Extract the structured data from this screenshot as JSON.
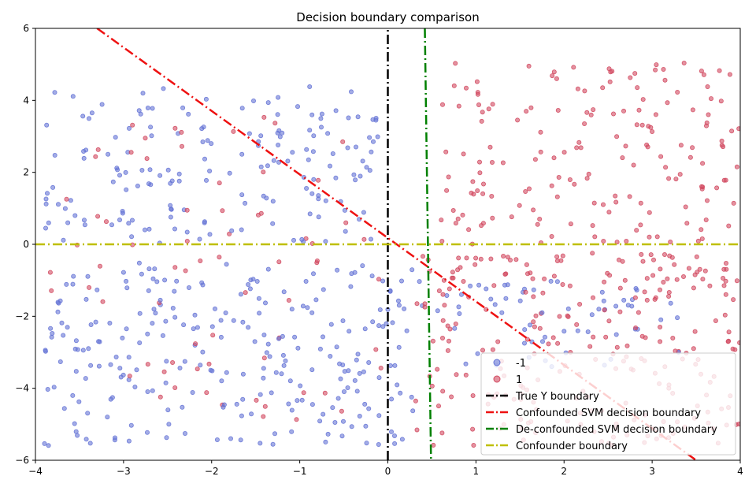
{
  "chart_data": {
    "type": "scatter",
    "title": "Decision boundary comparison",
    "xlabel": "",
    "ylabel": "",
    "xlim": [
      -4,
      4
    ],
    "ylim": [
      -6,
      6
    ],
    "x_ticks": [
      -4,
      -3,
      -2,
      -1,
      0,
      1,
      2,
      3,
      4
    ],
    "y_ticks": [
      -6,
      -4,
      -2,
      0,
      2,
      4,
      6
    ],
    "x_tick_labels": [
      "−4",
      "−3",
      "−2",
      "−1",
      "0",
      "1",
      "2",
      "3",
      "4"
    ],
    "y_tick_labels": [
      "−6",
      "−4",
      "−2",
      "0",
      "2",
      "4",
      "6"
    ],
    "grid": false,
    "legend_position": "lower-right",
    "colors": {
      "class_neg": "#6674d6",
      "class_pos": "#d24a60",
      "true_boundary": "#000000",
      "confounded": "#ee1111",
      "deconfounded": "#008000",
      "confounder": "#bfbf00"
    },
    "series": [
      {
        "name": "-1",
        "kind": "points",
        "clusters": [
          {
            "x_range": [
              -3.9,
              -0.1
            ],
            "y_range": [
              0.0,
              4.4
            ],
            "count": 170
          },
          {
            "x_range": [
              -3.9,
              0.4
            ],
            "y_range": [
              -5.6,
              -0.5
            ],
            "count": 260
          },
          {
            "x_range": [
              0.5,
              3.3
            ],
            "y_range": [
              -3.4,
              -1.0
            ],
            "count": 60
          }
        ]
      },
      {
        "name": "1",
        "kind": "points",
        "clusters": [
          {
            "x_range": [
              0.6,
              4.0
            ],
            "y_range": [
              0.0,
              5.1
            ],
            "count": 170
          },
          {
            "x_range": [
              0.3,
              4.0
            ],
            "y_range": [
              -5.6,
              -0.2
            ],
            "count": 260
          },
          {
            "x_range": [
              -3.9,
              0.0
            ],
            "y_range": [
              -4.9,
              3.6
            ],
            "count": 70
          }
        ]
      },
      {
        "name": "True Y boundary",
        "kind": "line",
        "style": "dash-dot",
        "points": [
          [
            0,
            -6
          ],
          [
            0,
            6
          ]
        ]
      },
      {
        "name": "Confounded SVM decision boundary",
        "kind": "line",
        "style": "dash-dot",
        "points": [
          [
            -3.3,
            6.0
          ],
          [
            3.5,
            -6.0
          ]
        ]
      },
      {
        "name": "De-confounded SVM decision boundary",
        "kind": "line",
        "style": "dash-dot",
        "points": [
          [
            0.42,
            6.0
          ],
          [
            0.49,
            -6.0
          ]
        ]
      },
      {
        "name": "Confounder boundary",
        "kind": "line",
        "style": "dash-dot",
        "points": [
          [
            -4,
            0
          ],
          [
            4,
            0
          ]
        ]
      }
    ]
  }
}
